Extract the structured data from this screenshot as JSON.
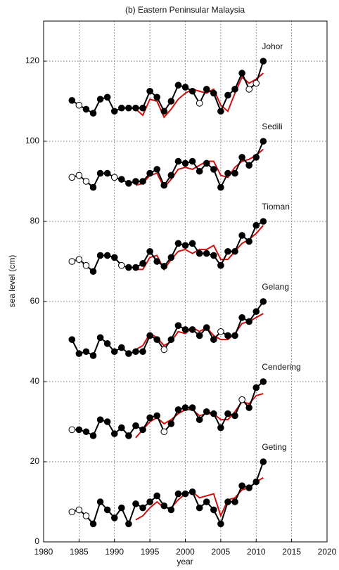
{
  "chart_data": {
    "type": "line",
    "title": "(b) Eastern Peninsular Malaysia",
    "ylabel": "sea level (cm)",
    "xlabel": "year",
    "x": [
      1984,
      1985,
      1986,
      1987,
      1988,
      1989,
      1990,
      1991,
      1992,
      1993,
      1994,
      1995,
      1996,
      1997,
      1998,
      1999,
      2000,
      2001,
      2002,
      2003,
      2004,
      2005,
      2006,
      2007,
      2008,
      2009,
      2010,
      2011
    ],
    "xlim": [
      1980,
      2020
    ],
    "xticks": [
      1980,
      1985,
      1990,
      1995,
      2000,
      2005,
      2010,
      2015,
      2020
    ],
    "ylim": [
      0,
      130
    ],
    "yticks": [
      0,
      20,
      40,
      60,
      80,
      100,
      120
    ],
    "grid": true,
    "series": [
      {
        "name": "Johor",
        "color": "#000000",
        "values": [
          110.2,
          109,
          108,
          107,
          110.5,
          111,
          107.5,
          108.3,
          108.3,
          108.3,
          108.3,
          112.5,
          111,
          107.5,
          110,
          114,
          113.5,
          112.5,
          109.5,
          113,
          112,
          107.5,
          111.5,
          113,
          117,
          113,
          114.5,
          120
        ],
        "hollow": [
          false,
          true,
          false,
          false,
          false,
          false,
          false,
          false,
          false,
          false,
          false,
          false,
          false,
          false,
          false,
          false,
          false,
          false,
          true,
          false,
          false,
          false,
          false,
          false,
          false,
          true,
          true,
          false
        ],
        "model_color": "#cc1111",
        "model_values": [
          null,
          null,
          null,
          null,
          null,
          null,
          null,
          null,
          null,
          108,
          106.5,
          110.5,
          110,
          106,
          108,
          110.5,
          112,
          113,
          112.5,
          112,
          113,
          109,
          107.5,
          112,
          116,
          114.5,
          115.5,
          117
        ]
      },
      {
        "name": "Sedili",
        "color": "#000000",
        "values": [
          91,
          91.5,
          90,
          88.5,
          92,
          92,
          91,
          90.5,
          89.5,
          90,
          90,
          92,
          93,
          89,
          91.5,
          95,
          94.5,
          95,
          92.5,
          94.5,
          93,
          88.5,
          92,
          92,
          96,
          94,
          96,
          100
        ],
        "hollow": [
          true,
          true,
          true,
          false,
          false,
          false,
          true,
          false,
          false,
          false,
          false,
          false,
          false,
          false,
          false,
          false,
          false,
          false,
          false,
          false,
          false,
          false,
          false,
          false,
          false,
          false,
          false,
          false
        ],
        "model_color": "#cc1111",
        "model_values": [
          null,
          null,
          null,
          null,
          null,
          null,
          null,
          null,
          null,
          89,
          89.5,
          91.5,
          92,
          88.5,
          90.5,
          93,
          93.5,
          93,
          94,
          95,
          95,
          91.5,
          91,
          93.5,
          95,
          95.5,
          96.5,
          98
        ]
      },
      {
        "name": "Tioman",
        "color": "#000000",
        "values": [
          70,
          70.5,
          69,
          67.5,
          71.5,
          71.5,
          71,
          69,
          68.5,
          68.5,
          69.5,
          72.5,
          70,
          68.8,
          71,
          74.5,
          74,
          74.5,
          72,
          72,
          71.5,
          69,
          72.5,
          72.5,
          76.5,
          75,
          79,
          80
        ],
        "hollow": [
          true,
          true,
          true,
          false,
          false,
          false,
          false,
          true,
          false,
          false,
          false,
          false,
          false,
          false,
          false,
          false,
          false,
          false,
          false,
          false,
          false,
          false,
          false,
          false,
          false,
          false,
          false,
          false
        ],
        "model_color": "#cc1111",
        "model_values": [
          null,
          null,
          null,
          null,
          null,
          null,
          null,
          null,
          null,
          68,
          68,
          71,
          71.5,
          68,
          70.5,
          72.5,
          73,
          72,
          73,
          73,
          74,
          70.5,
          70.5,
          72.5,
          74.5,
          75.5,
          77,
          79
        ]
      },
      {
        "name": "Gelang",
        "color": "#000000",
        "values": [
          50.5,
          47,
          47.5,
          46.5,
          51,
          49.5,
          47.5,
          48.5,
          47,
          47.5,
          47.5,
          51.5,
          50.5,
          48,
          50.5,
          54,
          53,
          53,
          51.5,
          53.5,
          50.5,
          52.5,
          51.5,
          51.5,
          56,
          55,
          57.5,
          60
        ],
        "hollow": [
          false,
          false,
          false,
          false,
          false,
          false,
          false,
          false,
          false,
          false,
          false,
          false,
          false,
          true,
          false,
          false,
          false,
          false,
          false,
          false,
          false,
          true,
          false,
          false,
          false,
          false,
          false,
          false
        ],
        "model_color": "#cc1111",
        "model_values": [
          null,
          null,
          null,
          null,
          null,
          null,
          null,
          null,
          null,
          48,
          49,
          52,
          51,
          49,
          50,
          52.5,
          52,
          53.5,
          52.5,
          53.5,
          51.5,
          50.5,
          50.5,
          52,
          54.5,
          55,
          56,
          57
        ]
      },
      {
        "name": "Cendering",
        "color": "#000000",
        "values": [
          28,
          28,
          27.5,
          26.5,
          30.5,
          30,
          27,
          28.5,
          26.5,
          29,
          28,
          31,
          31.5,
          27.5,
          29.5,
          33,
          33.5,
          33.5,
          30.5,
          32.5,
          32,
          28.5,
          32,
          31.5,
          35.5,
          33.5,
          38.5,
          40
        ],
        "hollow": [
          true,
          false,
          false,
          false,
          false,
          false,
          false,
          false,
          false,
          false,
          false,
          false,
          false,
          true,
          false,
          false,
          false,
          false,
          false,
          false,
          false,
          false,
          false,
          false,
          true,
          false,
          false,
          false
        ],
        "model_color": "#cc1111",
        "model_values": [
          null,
          null,
          null,
          null,
          null,
          null,
          null,
          null,
          null,
          26,
          28,
          30,
          31,
          29.5,
          30.5,
          32,
          33,
          33,
          31.5,
          32,
          32,
          30.5,
          30.5,
          32.5,
          35,
          34.5,
          36.5,
          37
        ]
      },
      {
        "name": "Geting",
        "color": "#000000",
        "values": [
          7.5,
          8,
          6.5,
          4.5,
          10,
          8,
          6,
          8.5,
          4.5,
          9.5,
          8.5,
          10,
          11.5,
          9,
          8,
          12,
          12,
          12.5,
          8.5,
          10,
          8,
          4.5,
          10,
          10,
          14,
          13.5,
          15,
          20
        ],
        "hollow": [
          true,
          true,
          true,
          false,
          false,
          false,
          false,
          false,
          false,
          false,
          false,
          false,
          false,
          false,
          false,
          false,
          false,
          false,
          false,
          false,
          false,
          false,
          false,
          false,
          false,
          false,
          false,
          false
        ],
        "model_color": "#cc1111",
        "model_values": [
          null,
          null,
          null,
          null,
          null,
          null,
          null,
          null,
          null,
          5.5,
          6.5,
          8.5,
          10,
          8.5,
          8.5,
          10.5,
          12,
          12.5,
          11,
          11.5,
          12,
          6.5,
          10.5,
          11,
          13,
          13.5,
          15,
          16
        ]
      }
    ]
  }
}
